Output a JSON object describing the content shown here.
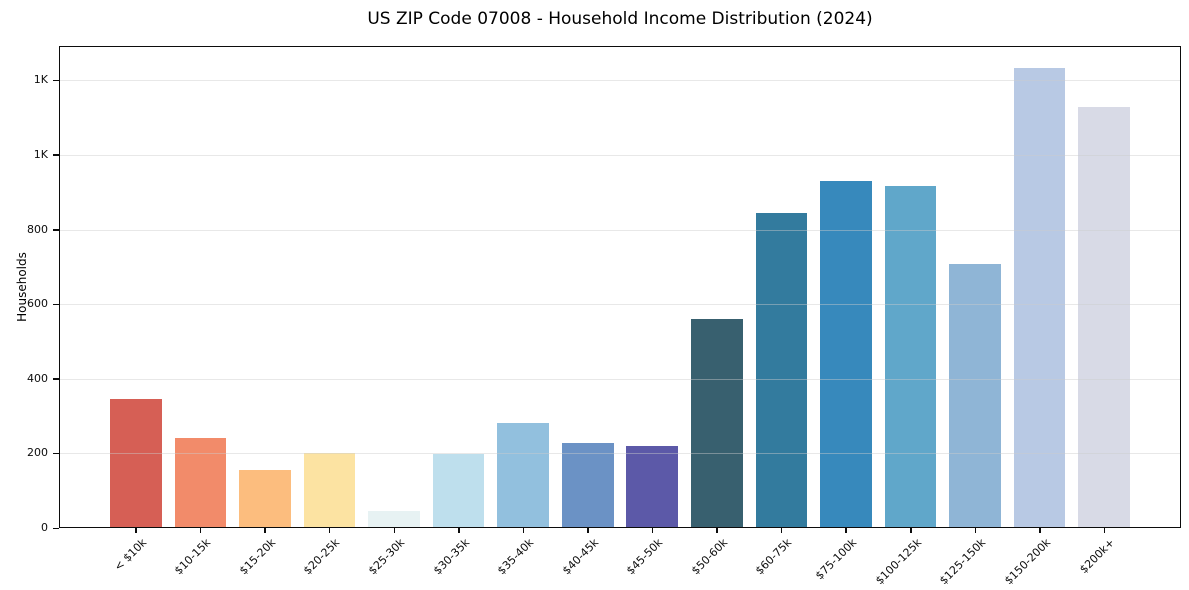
{
  "title": "US ZIP Code 07008 - Household Income Distribution (2024)",
  "chart_data": {
    "type": "bar",
    "title": "US ZIP Code 07008 - Household Income Distribution (2024)",
    "xlabel": "",
    "ylabel": "Households",
    "categories": [
      "< $10k",
      "$10-15k",
      "$15-20k",
      "$20-25k",
      "$25-30k",
      "$30-35k",
      "$35-40k",
      "$40-45k",
      "$45-50k",
      "$50-60k",
      "$60-75k",
      "$75-100k",
      "$100-125k",
      "$125-150k",
      "$150-200k",
      "$200k+"
    ],
    "values": [
      345,
      241,
      155,
      201,
      45,
      198,
      282,
      228,
      220,
      560,
      845,
      930,
      918,
      707,
      1232,
      1128
    ],
    "bar_colors": [
      "#d65f55",
      "#f28b6a",
      "#fcbd7e",
      "#fce3a2",
      "#e7f2f3",
      "#bedfed",
      "#92c0de",
      "#6b92c5",
      "#5c59a8",
      "#38606f",
      "#337b9e",
      "#3789bc",
      "#60a7ca",
      "#8fb5d6",
      "#b8c9e4",
      "#d8dae6"
    ],
    "ylim": [
      0,
      1292
    ],
    "yticks": [
      {
        "value": 0,
        "label": "0"
      },
      {
        "value": 200,
        "label": "200"
      },
      {
        "value": 400,
        "label": "400"
      },
      {
        "value": 600,
        "label": "600"
      },
      {
        "value": 800,
        "label": "800"
      },
      {
        "value": 1000,
        "label": "1K"
      },
      {
        "value": 1200,
        "label": "1K"
      }
    ],
    "grid": "horizontal-major",
    "legend": "none",
    "background": "#ffffff",
    "frame_color": "#0c0c0c",
    "gridline_color": "#ebebeb"
  }
}
